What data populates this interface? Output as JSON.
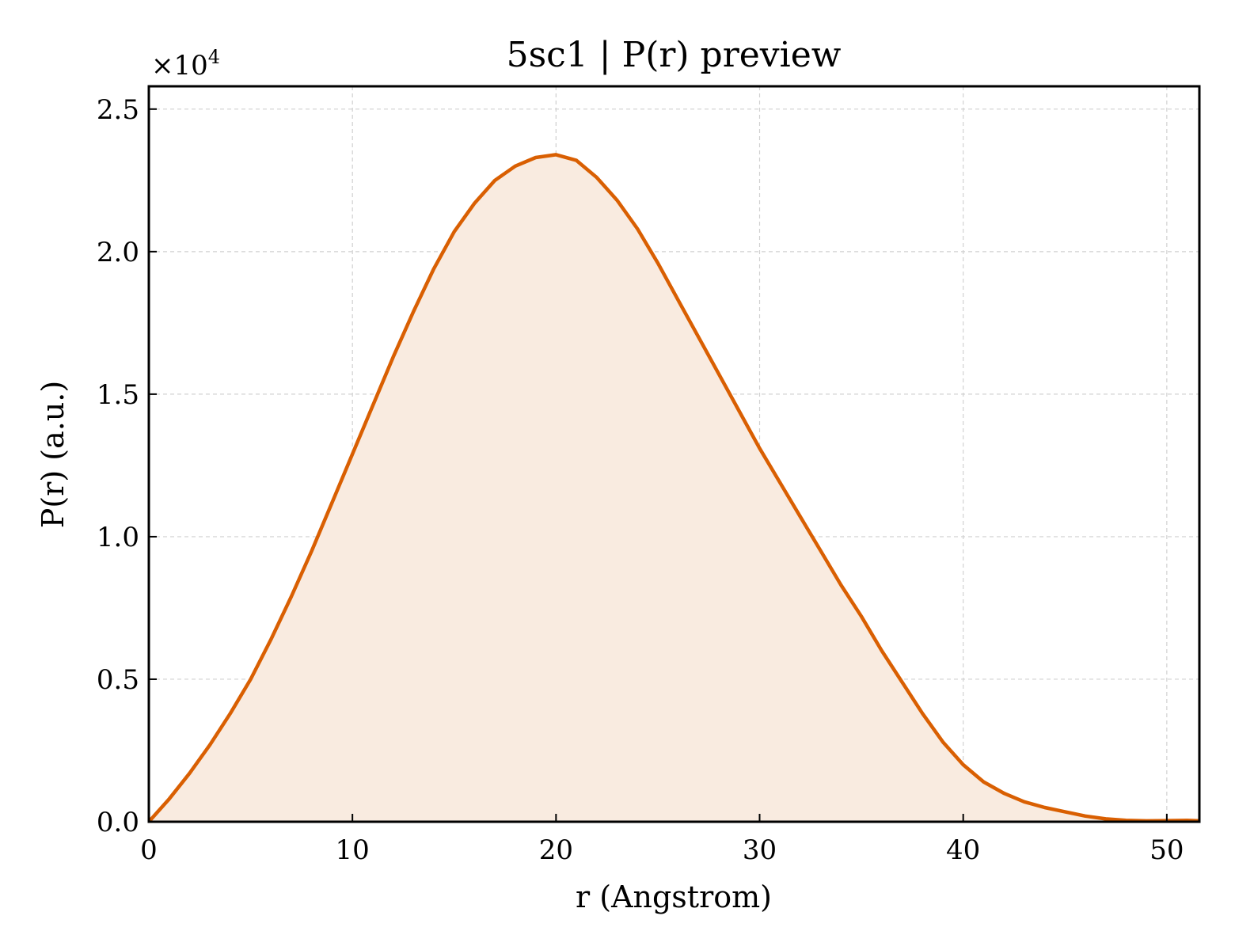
{
  "chart_data": {
    "type": "area",
    "title": "5sc1 | P(r) preview",
    "xlabel": "r (Angstrom)",
    "ylabel": "P(r) (a.u.)",
    "y_multiplier_base": "×10",
    "y_multiplier_exp": "4",
    "xlim": [
      0,
      51.6
    ],
    "ylim": [
      0,
      2.58
    ],
    "xticks": [
      0,
      10,
      20,
      30,
      40,
      50
    ],
    "xtick_labels": [
      "0",
      "10",
      "20",
      "30",
      "40",
      "50"
    ],
    "yticks": [
      0,
      0.5,
      1.0,
      1.5,
      2.0,
      2.5
    ],
    "ytick_labels": [
      "0.0",
      "0.5",
      "1.0",
      "1.5",
      "2.0",
      "2.5"
    ],
    "grid": true,
    "line_color": "#d95f02",
    "fill_color": "#f9ebe0",
    "series": [
      {
        "x": [
          0,
          1,
          2,
          3,
          4,
          5,
          6,
          7,
          8,
          9,
          10,
          11,
          12,
          13,
          14,
          15,
          16,
          17,
          18,
          19,
          20,
          21,
          22,
          23,
          24,
          25,
          26,
          27,
          28,
          29,
          30,
          31,
          32,
          33,
          34,
          35,
          36,
          37,
          38,
          39,
          40,
          41,
          42,
          43,
          44,
          45,
          46,
          47,
          48,
          49,
          50,
          51,
          51.6
        ],
        "y": [
          0.0,
          0.08,
          0.17,
          0.27,
          0.38,
          0.5,
          0.64,
          0.79,
          0.95,
          1.12,
          1.29,
          1.46,
          1.63,
          1.79,
          1.94,
          2.07,
          2.17,
          2.25,
          2.3,
          2.33,
          2.34,
          2.32,
          2.26,
          2.18,
          2.08,
          1.96,
          1.83,
          1.7,
          1.57,
          1.44,
          1.31,
          1.19,
          1.07,
          0.95,
          0.83,
          0.72,
          0.6,
          0.49,
          0.38,
          0.28,
          0.2,
          0.14,
          0.1,
          0.07,
          0.05,
          0.035,
          0.02,
          0.01,
          0.005,
          0.003,
          0.004,
          0.005,
          0.003
        ]
      }
    ]
  }
}
